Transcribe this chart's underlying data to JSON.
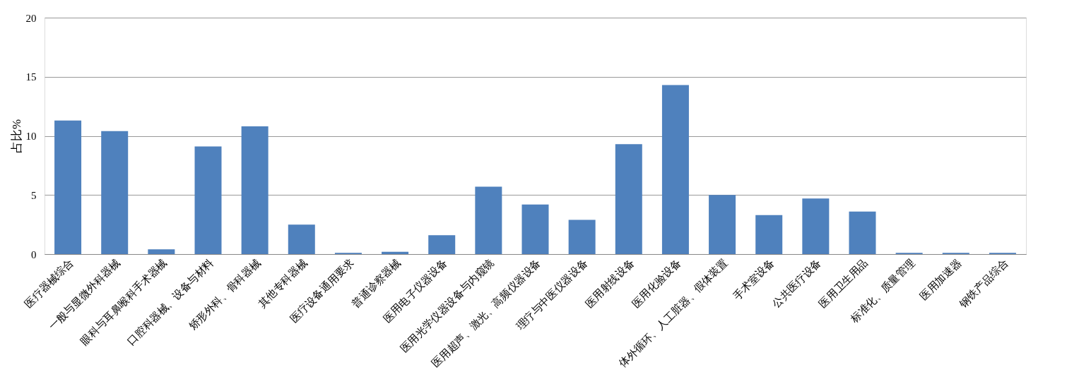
{
  "chart_data": {
    "type": "bar",
    "ylabel": "占比%",
    "categories": [
      "医疗器械综合",
      "一般与显微外科器械",
      "眼科与耳鼻喉科手术器械",
      "口腔科器械、设备与材料",
      "矫形外科、骨科器械",
      "其他专科器械",
      "医疗设备通用要求",
      "普通诊察器械",
      "医用电子仪器设备",
      "医用光学仪器设备与内窥镜",
      "医用超声、激光、高频仪器设备",
      "理疗与中医仪器设备",
      "医用射线设备",
      "医用化验设备",
      "体外循环、人工脏器、假体装置",
      "手术室设备",
      "公共医疗设备",
      "医用卫生用品",
      "标准化、质量管理",
      "医用加速器",
      "钢铁产品综合"
    ],
    "values": [
      11.3,
      10.4,
      0.4,
      9.1,
      10.8,
      2.5,
      0.1,
      0.2,
      1.6,
      5.7,
      4.2,
      2.9,
      9.3,
      14.3,
      5.0,
      3.3,
      4.7,
      3.6,
      0.1,
      0.1,
      0.1
    ],
    "color": "#4f81bd",
    "ylim": [
      0,
      20
    ],
    "yticks": [
      0,
      5,
      10,
      15,
      20
    ],
    "grid": "y"
  }
}
